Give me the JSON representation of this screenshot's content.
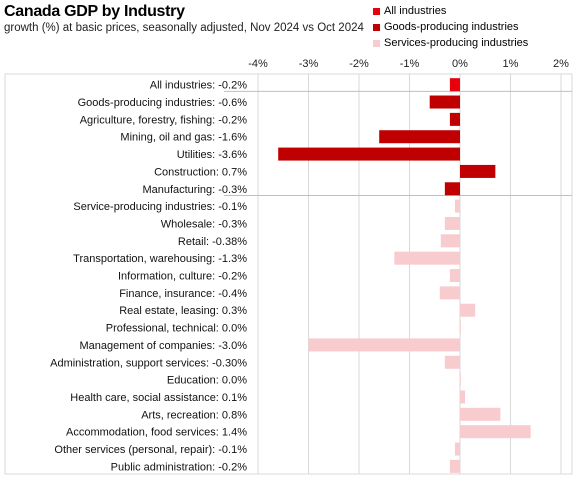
{
  "chart_data": {
    "type": "bar",
    "orientation": "horizontal",
    "title": "Canada GDP by Industry",
    "subtitle": "growth (%) at basic prices, seasonally  adjusted, Nov 2024 vs Oct 2024",
    "xlim": [
      -4,
      2
    ],
    "x_ticks": [
      "-4%",
      "-3%",
      "-2%",
      "-1%",
      "0%",
      "1%",
      "2%"
    ],
    "legend_position": "top-right",
    "grid": true,
    "series": [
      {
        "name": "All industries",
        "color": "#e8000b"
      },
      {
        "name": "Goods-producing industries",
        "color": "#c00000"
      },
      {
        "name": "Services-producing industries",
        "color": "#f8cbcf"
      }
    ],
    "categories": [
      {
        "label": "All industries: -0.2%",
        "value": -0.2,
        "series": 0
      },
      {
        "label": "Goods-producing industries: -0.6%",
        "value": -0.6,
        "series": 1
      },
      {
        "label": "Agriculture, forestry, fishing: -0.2%",
        "value": -0.2,
        "series": 1
      },
      {
        "label": "Mining, oil and gas: -1.6%",
        "value": -1.6,
        "series": 1
      },
      {
        "label": "Utilities: -3.6%",
        "value": -3.6,
        "series": 1
      },
      {
        "label": "Construction: 0.7%",
        "value": 0.7,
        "series": 1
      },
      {
        "label": "Manufacturing: -0.3%",
        "value": -0.3,
        "series": 1
      },
      {
        "label": "Service-producing industries: -0.1%",
        "value": -0.1,
        "series": 2
      },
      {
        "label": "Wholesale: -0.3%",
        "value": -0.3,
        "series": 2
      },
      {
        "label": "Retail: -0.38%",
        "value": -0.38,
        "series": 2
      },
      {
        "label": "Transportation, warehousing: -1.3%",
        "value": -1.3,
        "series": 2
      },
      {
        "label": "Information, culture: -0.2%",
        "value": -0.2,
        "series": 2
      },
      {
        "label": "Finance, insurance: -0.4%",
        "value": -0.4,
        "series": 2
      },
      {
        "label": "Real estate, leasing: 0.3%",
        "value": 0.3,
        "series": 2
      },
      {
        "label": "Professional, technical: 0.0%",
        "value": 0.0,
        "series": 2
      },
      {
        "label": "Management of companies: -3.0%",
        "value": -3.0,
        "series": 2
      },
      {
        "label": "Administration, support services: -0.30%",
        "value": -0.3,
        "series": 2
      },
      {
        "label": "Education: 0.0%",
        "value": 0.0,
        "series": 2
      },
      {
        "label": "Health care, social assistance: 0.1%",
        "value": 0.1,
        "series": 2
      },
      {
        "label": "Arts, recreation: 0.8%",
        "value": 0.8,
        "series": 2
      },
      {
        "label": "Accommodation, food services: 1.4%",
        "value": 1.4,
        "series": 2
      },
      {
        "label": "Other services (personal, repair): -0.1%",
        "value": -0.1,
        "series": 2
      },
      {
        "label": "Public administration: -0.2%",
        "value": -0.2,
        "series": 2
      }
    ]
  }
}
